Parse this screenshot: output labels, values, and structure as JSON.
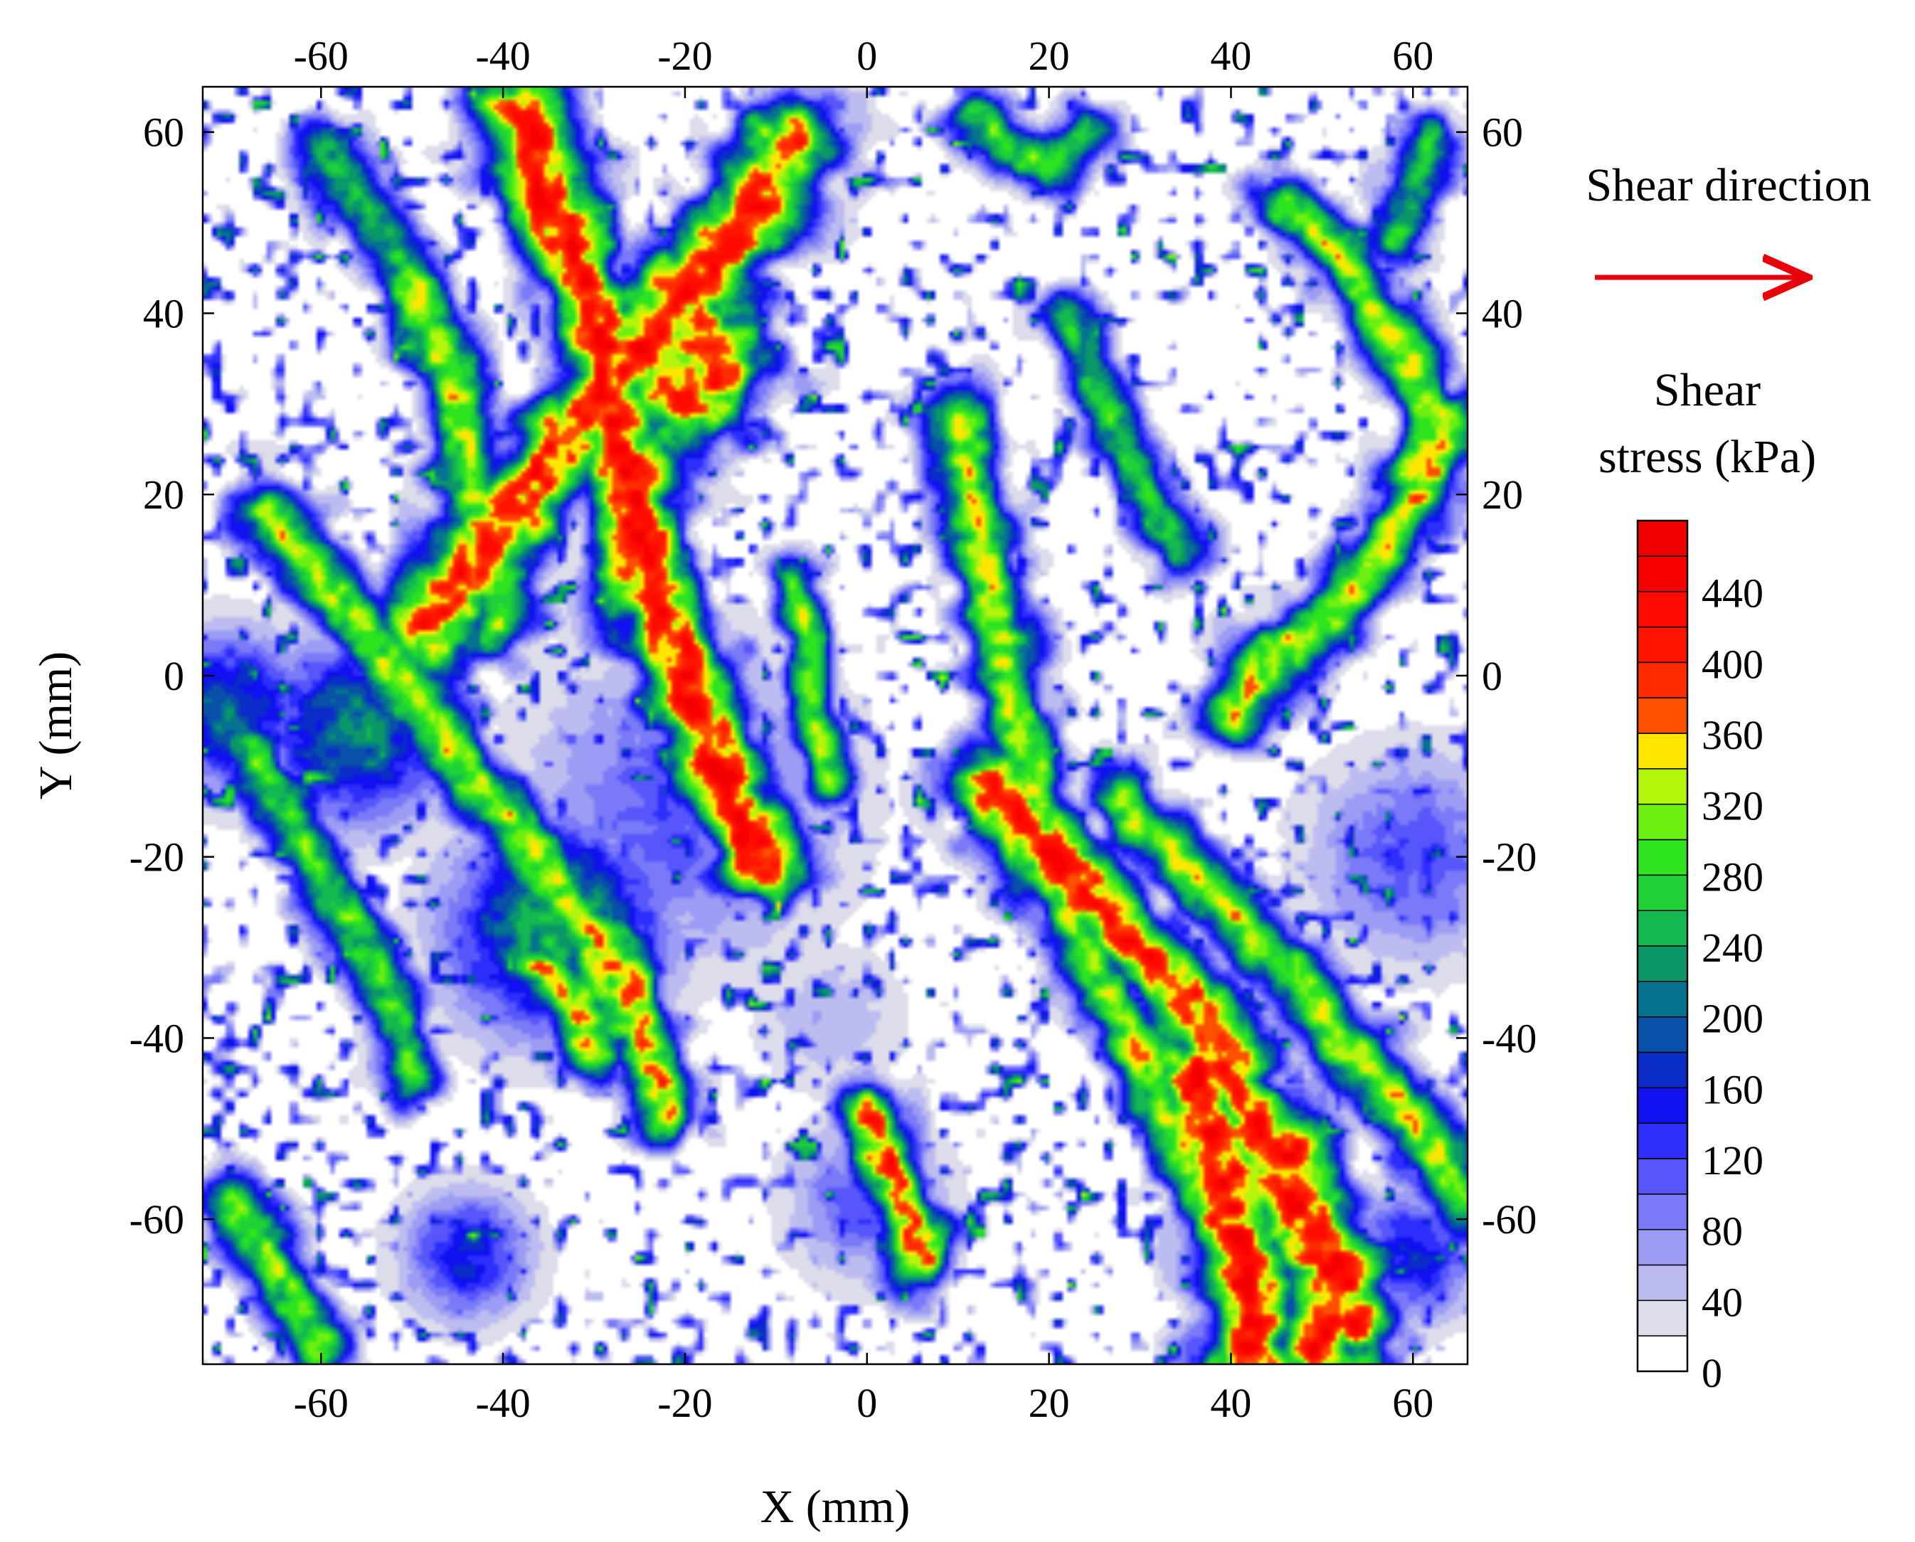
{
  "chart_data": {
    "type": "heatmap",
    "title": "",
    "xlabel": "X (mm)",
    "ylabel": "Y (mm)",
    "xlim": [
      -73,
      66
    ],
    "ylim": [
      -76,
      65
    ],
    "x_ticks": [
      -60,
      -40,
      -20,
      0,
      20,
      40,
      60
    ],
    "y_ticks": [
      60,
      40,
      20,
      0,
      -20,
      -40,
      -60
    ],
    "annotation": "Shear direction",
    "arrow_color": "#e8000b",
    "colorbar": {
      "title_line1": "Shear",
      "title_line2": "stress (kPa)",
      "unit": "kPa",
      "min": 0,
      "max": 480,
      "step": 20,
      "tick_labels": [
        "440",
        "400",
        "360",
        "320",
        "280",
        "240",
        "200",
        "160",
        "120",
        "80",
        "40",
        "0"
      ],
      "tick_values": [
        440,
        400,
        360,
        320,
        280,
        240,
        200,
        160,
        120,
        80,
        40,
        0
      ],
      "bands": [
        {
          "from": 0,
          "to": 20,
          "color": "#ffffff"
        },
        {
          "from": 20,
          "to": 40,
          "color": "#dcdcea"
        },
        {
          "from": 40,
          "to": 60,
          "color": "#bcbcf0"
        },
        {
          "from": 60,
          "to": 80,
          "color": "#9c9cf4"
        },
        {
          "from": 80,
          "to": 100,
          "color": "#7a7af8"
        },
        {
          "from": 100,
          "to": 120,
          "color": "#5656fb"
        },
        {
          "from": 120,
          "to": 140,
          "color": "#2e2efc"
        },
        {
          "from": 140,
          "to": 160,
          "color": "#1010f0"
        },
        {
          "from": 160,
          "to": 180,
          "color": "#0a2cc8"
        },
        {
          "from": 180,
          "to": 200,
          "color": "#0850a8"
        },
        {
          "from": 200,
          "to": 220,
          "color": "#067490"
        },
        {
          "from": 220,
          "to": 240,
          "color": "#0a9868"
        },
        {
          "from": 240,
          "to": 260,
          "color": "#14b850"
        },
        {
          "from": 260,
          "to": 280,
          "color": "#1ed238"
        },
        {
          "from": 280,
          "to": 300,
          "color": "#2ee41e"
        },
        {
          "from": 300,
          "to": 320,
          "color": "#6cf012"
        },
        {
          "from": 320,
          "to": 340,
          "color": "#b4f50c"
        },
        {
          "from": 340,
          "to": 360,
          "color": "#ffe600"
        },
        {
          "from": 360,
          "to": 380,
          "color": "#ff5000"
        },
        {
          "from": 380,
          "to": 400,
          "color": "#ff2a00"
        },
        {
          "from": 400,
          "to": 420,
          "color": "#ff1400"
        },
        {
          "from": 420,
          "to": 440,
          "color": "#ff0a00"
        },
        {
          "from": 440,
          "to": 460,
          "color": "#f80000"
        },
        {
          "from": 460,
          "to": 480,
          "color": "#f00000"
        }
      ]
    },
    "stress_ridges": [
      {
        "path": [
          [
            -66,
            18
          ],
          [
            -58,
            8
          ],
          [
            -52,
            0
          ],
          [
            -44,
            -10
          ],
          [
            -36,
            -20
          ],
          [
            -30,
            -30
          ],
          [
            -26,
            -38
          ]
        ],
        "peak": 320,
        "width": 2.5
      },
      {
        "path": [
          [
            -68,
            -8
          ],
          [
            -62,
            -18
          ],
          [
            -56,
            -28
          ],
          [
            -52,
            -36
          ],
          [
            -50,
            -44
          ]
        ],
        "peak": 280,
        "width": 2.2
      },
      {
        "path": [
          [
            -70,
            -58
          ],
          [
            -66,
            -64
          ],
          [
            -62,
            -70
          ],
          [
            -60,
            -74
          ]
        ],
        "peak": 300,
        "width": 2.2
      },
      {
        "path": [
          [
            -50,
            44
          ],
          [
            -46,
            34
          ],
          [
            -44,
            24
          ],
          [
            -42,
            14
          ],
          [
            -40,
            6
          ]
        ],
        "peak": 320,
        "width": 2.4
      },
      {
        "path": [
          [
            -38,
            62
          ],
          [
            -34,
            50
          ],
          [
            -30,
            40
          ],
          [
            -28,
            30
          ],
          [
            -26,
            20
          ],
          [
            -24,
            10
          ],
          [
            -20,
            0
          ],
          [
            -16,
            -10
          ],
          [
            -12,
            -20
          ]
        ],
        "peak": 420,
        "width": 3.2
      },
      {
        "path": [
          [
            -48,
            6
          ],
          [
            -42,
            14
          ],
          [
            -36,
            22
          ],
          [
            -30,
            30
          ],
          [
            -24,
            38
          ],
          [
            -18,
            44
          ],
          [
            -12,
            52
          ],
          [
            -8,
            60
          ]
        ],
        "peak": 400,
        "width": 3.4
      },
      {
        "path": [
          [
            -22,
            42
          ],
          [
            -18,
            38
          ],
          [
            -16,
            34
          ],
          [
            -20,
            30
          ],
          [
            -24,
            34
          ]
        ],
        "peak": 380,
        "width": 3.8
      },
      {
        "path": [
          [
            -60,
            58
          ],
          [
            -56,
            52
          ],
          [
            -52,
            48
          ],
          [
            -48,
            40
          ]
        ],
        "peak": 260,
        "width": 2.2
      },
      {
        "path": [
          [
            -30,
            -28
          ],
          [
            -26,
            -34
          ],
          [
            -24,
            -42
          ],
          [
            -22,
            -48
          ]
        ],
        "peak": 360,
        "width": 2.2
      },
      {
        "path": [
          [
            -36,
            -32
          ],
          [
            -32,
            -36
          ],
          [
            -30,
            -42
          ]
        ],
        "peak": 340,
        "width": 2.0
      },
      {
        "path": [
          [
            0,
            -48
          ],
          [
            2,
            -52
          ],
          [
            4,
            -58
          ],
          [
            6,
            -64
          ]
        ],
        "peak": 380,
        "width": 2.4
      },
      {
        "path": [
          [
            10,
            28
          ],
          [
            12,
            18
          ],
          [
            14,
            8
          ],
          [
            16,
            -2
          ],
          [
            18,
            -12
          ],
          [
            20,
            -22
          ],
          [
            24,
            -30
          ],
          [
            28,
            -38
          ],
          [
            32,
            -46
          ],
          [
            36,
            -54
          ]
        ],
        "peak": 320,
        "width": 2.4
      },
      {
        "path": [
          [
            22,
            40
          ],
          [
            26,
            30
          ],
          [
            30,
            22
          ],
          [
            34,
            14
          ]
        ],
        "peak": 260,
        "width": 2.0
      },
      {
        "path": [
          [
            14,
            -12
          ],
          [
            20,
            -20
          ],
          [
            26,
            -26
          ],
          [
            32,
            -32
          ],
          [
            38,
            -40
          ],
          [
            42,
            -48
          ],
          [
            46,
            -56
          ],
          [
            50,
            -64
          ],
          [
            54,
            -72
          ]
        ],
        "peak": 400,
        "width": 3.0
      },
      {
        "path": [
          [
            36,
            -44
          ],
          [
            38,
            -52
          ],
          [
            40,
            -60
          ],
          [
            42,
            -68
          ],
          [
            42,
            -76
          ]
        ],
        "peak": 420,
        "width": 3.2
      },
      {
        "path": [
          [
            46,
            -52
          ],
          [
            48,
            -60
          ],
          [
            52,
            -66
          ],
          [
            50,
            -74
          ]
        ],
        "peak": 420,
        "width": 3.2
      },
      {
        "path": [
          [
            28,
            -14
          ],
          [
            34,
            -20
          ],
          [
            40,
            -26
          ],
          [
            46,
            -32
          ],
          [
            52,
            -40
          ],
          [
            58,
            -46
          ],
          [
            62,
            -52
          ],
          [
            66,
            -58
          ]
        ],
        "peak": 320,
        "width": 2.4
      },
      {
        "path": [
          [
            40,
            -4
          ],
          [
            44,
            2
          ],
          [
            50,
            6
          ],
          [
            54,
            10
          ],
          [
            58,
            16
          ],
          [
            62,
            22
          ],
          [
            64,
            28
          ]
        ],
        "peak": 340,
        "width": 2.4
      },
      {
        "path": [
          [
            46,
            52
          ],
          [
            52,
            46
          ],
          [
            56,
            40
          ],
          [
            60,
            34
          ],
          [
            62,
            28
          ],
          [
            60,
            22
          ]
        ],
        "peak": 320,
        "width": 2.2
      },
      {
        "path": [
          [
            12,
            62
          ],
          [
            16,
            58
          ],
          [
            20,
            56
          ],
          [
            24,
            60
          ]
        ],
        "peak": 280,
        "width": 2.0
      },
      {
        "path": [
          [
            -8,
            10
          ],
          [
            -6,
            4
          ],
          [
            -6,
            -4
          ],
          [
            -4,
            -12
          ]
        ],
        "peak": 300,
        "width": 1.8
      },
      {
        "path": [
          [
            62,
            60
          ],
          [
            60,
            54
          ],
          [
            58,
            48
          ]
        ],
        "peak": 260,
        "width": 2.0
      }
    ],
    "low_stress_zones": [
      {
        "center": [
          -34,
          -28
        ],
        "peak": 260,
        "radius": 8
      },
      {
        "center": [
          -56,
          -6
        ],
        "peak": 220,
        "radius": 7
      },
      {
        "center": [
          -70,
          -4
        ],
        "peak": 200,
        "radius": 6
      },
      {
        "center": [
          -20,
          -14
        ],
        "peak": 120,
        "radius": 12
      },
      {
        "center": [
          -4,
          -38
        ],
        "peak": 60,
        "radius": 6
      },
      {
        "center": [
          0,
          -58
        ],
        "peak": 120,
        "radius": 6
      },
      {
        "center": [
          60,
          -20
        ],
        "peak": 120,
        "radius": 8
      },
      {
        "center": [
          -44,
          -64
        ],
        "peak": 160,
        "radius": 5
      },
      {
        "center": [
          60,
          -64
        ],
        "peak": 160,
        "radius": 5
      }
    ],
    "grid": false
  }
}
